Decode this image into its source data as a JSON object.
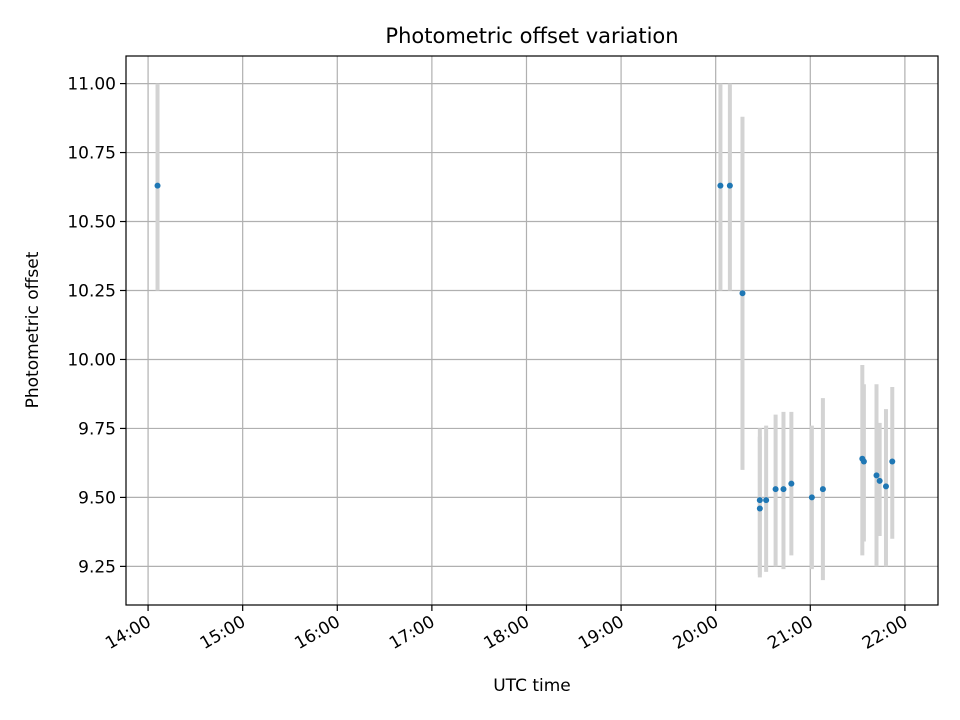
{
  "chart_data": {
    "type": "scatter",
    "title": "Photometric offset variation",
    "xlabel": "UTC time",
    "ylabel": "Photometric offset",
    "xlim": [
      "13:46",
      "22:21"
    ],
    "ylim": [
      9.11,
      11.1
    ],
    "x_ticks": [
      "14:00",
      "15:00",
      "16:00",
      "17:00",
      "18:00",
      "19:00",
      "20:00",
      "21:00",
      "22:00"
    ],
    "y_ticks": [
      "9.25",
      "9.50",
      "9.75",
      "10.00",
      "10.25",
      "10.50",
      "10.75",
      "11.00"
    ],
    "grid": true,
    "colors": {
      "point": "#1f77b4",
      "errorbar": "#d3d3d3",
      "grid": "#b0b0b0"
    },
    "series": [
      {
        "points": [
          {
            "x": "14:06",
            "y": 10.63,
            "lo": 10.25,
            "hi": 11.0
          },
          {
            "x": "20:03",
            "y": 10.63,
            "lo": 10.25,
            "hi": 11.0
          },
          {
            "x": "20:09",
            "y": 10.63,
            "lo": 10.25,
            "hi": 11.0
          },
          {
            "x": "20:17",
            "y": 10.24,
            "lo": 9.6,
            "hi": 10.88
          },
          {
            "x": "20:28",
            "y": 9.46,
            "lo": 9.21,
            "hi": 9.72
          },
          {
            "x": "20:28",
            "y": 9.49,
            "lo": 9.22,
            "hi": 9.75
          },
          {
            "x": "20:32",
            "y": 9.49,
            "lo": 9.23,
            "hi": 9.76
          },
          {
            "x": "20:38",
            "y": 9.53,
            "lo": 9.25,
            "hi": 9.8
          },
          {
            "x": "20:43",
            "y": 9.53,
            "lo": 9.24,
            "hi": 9.81
          },
          {
            "x": "20:48",
            "y": 9.55,
            "lo": 9.29,
            "hi": 9.81
          },
          {
            "x": "21:01",
            "y": 9.5,
            "lo": 9.24,
            "hi": 9.76
          },
          {
            "x": "21:08",
            "y": 9.53,
            "lo": 9.2,
            "hi": 9.86
          },
          {
            "x": "21:33",
            "y": 9.64,
            "lo": 9.29,
            "hi": 9.98
          },
          {
            "x": "21:34",
            "y": 9.63,
            "lo": 9.34,
            "hi": 9.91
          },
          {
            "x": "21:42",
            "y": 9.58,
            "lo": 9.25,
            "hi": 9.91
          },
          {
            "x": "21:44",
            "y": 9.56,
            "lo": 9.36,
            "hi": 9.77
          },
          {
            "x": "21:48",
            "y": 9.54,
            "lo": 9.25,
            "hi": 9.82
          },
          {
            "x": "21:52",
            "y": 9.63,
            "lo": 9.35,
            "hi": 9.9
          }
        ]
      }
    ]
  }
}
